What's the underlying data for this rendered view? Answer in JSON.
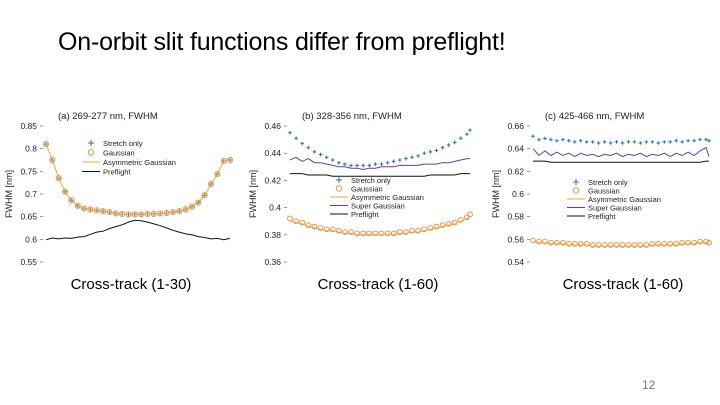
{
  "slide": {
    "title": "On-orbit slit functions differ from preflight!",
    "page_number": "12",
    "captions": [
      "Cross-track (1-30)",
      "Cross-track (1-60)",
      "Cross-track (1-60)"
    ]
  },
  "colors": {
    "stretch": "#2c6fb5",
    "gaussian": "#e08a3c",
    "asym": "#e8a93a",
    "super": "#6a3d9a",
    "preflight": "#111111"
  },
  "chart_data": [
    {
      "type": "line",
      "title": "(a) 269-277 nm, FWHM",
      "ylabel": "FWHM [nm]",
      "ylim": [
        0.55,
        0.85
      ],
      "yticks": [
        "0.85",
        "0.8",
        "0.75",
        "0.7",
        "0.65",
        "0.6",
        "0.55"
      ],
      "ytick_values": [
        0.85,
        0.8,
        0.75,
        0.7,
        0.65,
        0.6,
        0.55
      ],
      "xlim": [
        1,
        30
      ],
      "legend": [
        "Stretch only",
        "Gaussian",
        "Asymmetric Gaussian",
        "Preflight"
      ],
      "legend_position": "center",
      "series": [
        {
          "name": "Stretch only",
          "style": "plus",
          "color": "#2c6fb5",
          "x": [
            1,
            2,
            3,
            4,
            5,
            6,
            7,
            8,
            9,
            10,
            11,
            12,
            13,
            14,
            15,
            16,
            17,
            18,
            19,
            20,
            21,
            22,
            23,
            24,
            25,
            26,
            27,
            28,
            29,
            30
          ],
          "y": [
            0.81,
            0.775,
            0.735,
            0.705,
            0.686,
            0.674,
            0.668,
            0.666,
            0.664,
            0.662,
            0.66,
            0.657,
            0.656,
            0.655,
            0.655,
            0.655,
            0.656,
            0.656,
            0.657,
            0.658,
            0.66,
            0.662,
            0.666,
            0.672,
            0.681,
            0.697,
            0.722,
            0.744,
            0.773,
            0.775
          ]
        },
        {
          "name": "Gaussian",
          "style": "circle",
          "color": "#e08a3c",
          "x": [
            1,
            2,
            3,
            4,
            5,
            6,
            7,
            8,
            9,
            10,
            11,
            12,
            13,
            14,
            15,
            16,
            17,
            18,
            19,
            20,
            21,
            22,
            23,
            24,
            25,
            26,
            27,
            28,
            29,
            30
          ],
          "y": [
            0.81,
            0.775,
            0.735,
            0.705,
            0.686,
            0.674,
            0.668,
            0.666,
            0.664,
            0.662,
            0.66,
            0.657,
            0.656,
            0.655,
            0.655,
            0.655,
            0.656,
            0.656,
            0.657,
            0.658,
            0.66,
            0.662,
            0.666,
            0.672,
            0.681,
            0.697,
            0.722,
            0.744,
            0.773,
            0.775
          ]
        },
        {
          "name": "Asymmetric Gaussian",
          "style": "line",
          "color": "#e8a93a",
          "x": [
            1,
            2,
            3,
            4,
            5,
            6,
            7,
            8,
            9,
            10,
            11,
            12,
            13,
            14,
            15,
            16,
            17,
            18,
            19,
            20,
            21,
            22,
            23,
            24,
            25,
            26,
            27,
            28,
            29,
            30
          ],
          "y": [
            0.81,
            0.775,
            0.735,
            0.705,
            0.686,
            0.674,
            0.668,
            0.666,
            0.664,
            0.662,
            0.66,
            0.657,
            0.656,
            0.655,
            0.655,
            0.655,
            0.656,
            0.656,
            0.657,
            0.658,
            0.66,
            0.662,
            0.666,
            0.672,
            0.681,
            0.697,
            0.722,
            0.744,
            0.773,
            0.775
          ]
        },
        {
          "name": "Preflight",
          "style": "line",
          "color": "#111111",
          "x": [
            1,
            2,
            3,
            4,
            5,
            6,
            7,
            8,
            9,
            10,
            11,
            12,
            13,
            14,
            15,
            16,
            17,
            18,
            19,
            20,
            21,
            22,
            23,
            24,
            25,
            26,
            27,
            28,
            29,
            30
          ],
          "y": [
            0.599,
            0.603,
            0.601,
            0.603,
            0.602,
            0.605,
            0.606,
            0.611,
            0.616,
            0.618,
            0.624,
            0.628,
            0.632,
            0.638,
            0.642,
            0.641,
            0.638,
            0.634,
            0.63,
            0.625,
            0.62,
            0.616,
            0.612,
            0.61,
            0.606,
            0.604,
            0.601,
            0.602,
            0.599,
            0.602
          ]
        }
      ]
    },
    {
      "type": "line",
      "title": "(b) 328-356 nm, FWHM",
      "ylabel": "FWHM [nm]",
      "ylim": [
        0.36,
        0.46
      ],
      "yticks": [
        "0.46",
        "0.44",
        "0.42",
        "0.4",
        "0.38",
        "0.36"
      ],
      "ytick_values": [
        0.46,
        0.44,
        0.42,
        0.4,
        0.38,
        0.36
      ],
      "xlim": [
        1,
        60
      ],
      "legend": [
        "Stretch only",
        "Gaussian",
        "Asymmetric Gaussian",
        "Super Gaussian",
        "Preflight"
      ],
      "legend_position": "center",
      "series": [
        {
          "name": "Stretch only",
          "style": "plus",
          "color": "#2c6fb5",
          "x": [
            1,
            3,
            5,
            7,
            9,
            11,
            13,
            15,
            17,
            19,
            21,
            23,
            25,
            27,
            29,
            31,
            33,
            35,
            37,
            39,
            41,
            43,
            45,
            47,
            49,
            51,
            53,
            55,
            57,
            59,
            60
          ],
          "y": [
            0.455,
            0.451,
            0.447,
            0.444,
            0.441,
            0.439,
            0.437,
            0.435,
            0.433,
            0.432,
            0.431,
            0.431,
            0.431,
            0.431,
            0.432,
            0.432,
            0.433,
            0.434,
            0.435,
            0.436,
            0.437,
            0.438,
            0.44,
            0.441,
            0.442,
            0.444,
            0.446,
            0.448,
            0.451,
            0.454,
            0.457
          ]
        },
        {
          "name": "Gaussian",
          "style": "circle",
          "color": "#e08a3c",
          "x": [
            1,
            3,
            5,
            7,
            9,
            11,
            13,
            15,
            17,
            19,
            21,
            23,
            25,
            27,
            29,
            31,
            33,
            35,
            37,
            39,
            41,
            43,
            45,
            47,
            49,
            51,
            53,
            55,
            57,
            59,
            60
          ],
          "y": [
            0.392,
            0.39,
            0.389,
            0.387,
            0.386,
            0.385,
            0.384,
            0.384,
            0.383,
            0.382,
            0.382,
            0.381,
            0.381,
            0.381,
            0.381,
            0.381,
            0.381,
            0.381,
            0.382,
            0.382,
            0.383,
            0.383,
            0.384,
            0.385,
            0.386,
            0.387,
            0.388,
            0.389,
            0.391,
            0.393,
            0.395
          ]
        },
        {
          "name": "Asymmetric Gaussian",
          "style": "line",
          "color": "#e8a93a",
          "x": [
            1,
            3,
            5,
            7,
            9,
            11,
            13,
            15,
            17,
            19,
            21,
            23,
            25,
            27,
            29,
            31,
            33,
            35,
            37,
            39,
            41,
            43,
            45,
            47,
            49,
            51,
            53,
            55,
            57,
            59,
            60
          ],
          "y": [
            0.39,
            0.389,
            0.388,
            0.386,
            0.385,
            0.384,
            0.383,
            0.383,
            0.382,
            0.381,
            0.381,
            0.38,
            0.38,
            0.38,
            0.38,
            0.38,
            0.38,
            0.38,
            0.381,
            0.381,
            0.382,
            0.382,
            0.383,
            0.384,
            0.385,
            0.386,
            0.387,
            0.388,
            0.39,
            0.392,
            0.393
          ]
        },
        {
          "name": "Super Gaussian",
          "style": "line",
          "color": "#6a3d9a",
          "x": [
            1,
            3,
            5,
            7,
            9,
            11,
            13,
            15,
            17,
            19,
            21,
            23,
            25,
            27,
            29,
            31,
            33,
            35,
            37,
            39,
            41,
            43,
            45,
            47,
            49,
            51,
            53,
            55,
            57,
            59,
            60
          ],
          "y": [
            0.435,
            0.437,
            0.434,
            0.436,
            0.433,
            0.433,
            0.432,
            0.431,
            0.43,
            0.43,
            0.429,
            0.429,
            0.428,
            0.429,
            0.429,
            0.43,
            0.43,
            0.43,
            0.431,
            0.431,
            0.431,
            0.431,
            0.432,
            0.432,
            0.432,
            0.433,
            0.433,
            0.434,
            0.435,
            0.436,
            0.436
          ]
        },
        {
          "name": "Preflight",
          "style": "line",
          "color": "#111111",
          "x": [
            1,
            3,
            5,
            7,
            9,
            11,
            13,
            15,
            17,
            19,
            21,
            23,
            25,
            27,
            29,
            31,
            33,
            35,
            37,
            39,
            41,
            43,
            45,
            47,
            49,
            51,
            53,
            55,
            57,
            59,
            60
          ],
          "y": [
            0.425,
            0.425,
            0.425,
            0.424,
            0.424,
            0.424,
            0.424,
            0.423,
            0.423,
            0.423,
            0.423,
            0.423,
            0.423,
            0.423,
            0.423,
            0.423,
            0.423,
            0.423,
            0.423,
            0.423,
            0.423,
            0.423,
            0.423,
            0.424,
            0.424,
            0.424,
            0.424,
            0.424,
            0.425,
            0.425,
            0.425
          ]
        }
      ]
    },
    {
      "type": "line",
      "title": "(c) 425-466 nm, FWHM",
      "ylabel": "FWHM [nm]",
      "ylim": [
        0.54,
        0.66
      ],
      "yticks": [
        "0.66",
        "0.64",
        "0.62",
        "0.6",
        "0.58",
        "0.56",
        "0.54"
      ],
      "ytick_values": [
        0.66,
        0.64,
        0.62,
        0.6,
        0.58,
        0.56,
        0.54
      ],
      "xlim": [
        1,
        60
      ],
      "legend": [
        "Stretch only",
        "Gaussian",
        "Asymmetric Gaussian",
        "Super Gaussian",
        "Preflight"
      ],
      "legend_position": "center",
      "series": [
        {
          "name": "Stretch only",
          "style": "plus",
          "color": "#2c6fb5",
          "x": [
            1,
            3,
            5,
            7,
            9,
            11,
            13,
            15,
            17,
            19,
            21,
            23,
            25,
            27,
            29,
            31,
            33,
            35,
            37,
            39,
            41,
            43,
            45,
            47,
            49,
            51,
            53,
            55,
            57,
            59,
            60
          ],
          "y": [
            0.651,
            0.648,
            0.649,
            0.648,
            0.647,
            0.648,
            0.647,
            0.646,
            0.647,
            0.646,
            0.646,
            0.645,
            0.646,
            0.645,
            0.646,
            0.645,
            0.646,
            0.646,
            0.645,
            0.646,
            0.646,
            0.645,
            0.646,
            0.646,
            0.647,
            0.646,
            0.647,
            0.647,
            0.648,
            0.648,
            0.647
          ]
        },
        {
          "name": "Gaussian",
          "style": "circle",
          "color": "#e08a3c",
          "x": [
            1,
            3,
            5,
            7,
            9,
            11,
            13,
            15,
            17,
            19,
            21,
            23,
            25,
            27,
            29,
            31,
            33,
            35,
            37,
            39,
            41,
            43,
            45,
            47,
            49,
            51,
            53,
            55,
            57,
            59,
            60
          ],
          "y": [
            0.559,
            0.558,
            0.558,
            0.557,
            0.557,
            0.557,
            0.556,
            0.556,
            0.556,
            0.556,
            0.555,
            0.555,
            0.555,
            0.555,
            0.555,
            0.555,
            0.555,
            0.555,
            0.555,
            0.555,
            0.556,
            0.556,
            0.556,
            0.556,
            0.556,
            0.557,
            0.557,
            0.557,
            0.558,
            0.558,
            0.557
          ]
        },
        {
          "name": "Asymmetric Gaussian",
          "style": "line",
          "color": "#e8a93a",
          "x": [
            1,
            3,
            5,
            7,
            9,
            11,
            13,
            15,
            17,
            19,
            21,
            23,
            25,
            27,
            29,
            31,
            33,
            35,
            37,
            39,
            41,
            43,
            45,
            47,
            49,
            51,
            53,
            55,
            57,
            59,
            60
          ],
          "y": [
            0.558,
            0.557,
            0.557,
            0.556,
            0.556,
            0.556,
            0.555,
            0.555,
            0.555,
            0.555,
            0.554,
            0.554,
            0.554,
            0.554,
            0.554,
            0.554,
            0.554,
            0.554,
            0.554,
            0.554,
            0.555,
            0.555,
            0.555,
            0.555,
            0.555,
            0.556,
            0.556,
            0.556,
            0.557,
            0.557,
            0.556
          ]
        },
        {
          "name": "Super Gaussian",
          "style": "line",
          "color": "#6a3d9a",
          "x": [
            1,
            3,
            5,
            7,
            9,
            11,
            13,
            15,
            17,
            19,
            21,
            23,
            25,
            27,
            29,
            31,
            33,
            35,
            37,
            39,
            41,
            43,
            45,
            47,
            49,
            51,
            53,
            55,
            57,
            59,
            60
          ],
          "y": [
            0.64,
            0.634,
            0.638,
            0.634,
            0.637,
            0.634,
            0.636,
            0.633,
            0.636,
            0.634,
            0.635,
            0.633,
            0.635,
            0.634,
            0.636,
            0.633,
            0.635,
            0.634,
            0.636,
            0.633,
            0.635,
            0.634,
            0.636,
            0.633,
            0.636,
            0.634,
            0.637,
            0.634,
            0.638,
            0.641,
            0.633
          ]
        },
        {
          "name": "Preflight",
          "style": "line",
          "color": "#111111",
          "x": [
            1,
            3,
            5,
            7,
            9,
            11,
            13,
            15,
            17,
            19,
            21,
            23,
            25,
            27,
            29,
            31,
            33,
            35,
            37,
            39,
            41,
            43,
            45,
            47,
            49,
            51,
            53,
            55,
            57,
            59,
            60
          ],
          "y": [
            0.629,
            0.629,
            0.629,
            0.628,
            0.628,
            0.628,
            0.628,
            0.628,
            0.628,
            0.628,
            0.628,
            0.628,
            0.628,
            0.628,
            0.628,
            0.628,
            0.628,
            0.628,
            0.628,
            0.628,
            0.628,
            0.628,
            0.628,
            0.628,
            0.628,
            0.628,
            0.628,
            0.628,
            0.628,
            0.629,
            0.629
          ]
        }
      ]
    }
  ]
}
